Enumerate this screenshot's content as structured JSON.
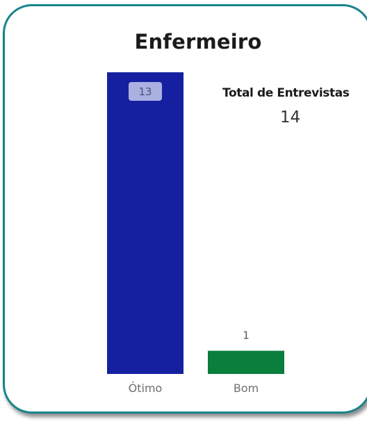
{
  "card": {
    "border_color": "#17848a"
  },
  "kpi": {
    "label": "Total de Entrevistas",
    "value": "14"
  },
  "chart_data": {
    "type": "bar",
    "title": "Enfermeiro",
    "categories": [
      "Ótimo",
      "Bom"
    ],
    "values": [
      13,
      1
    ],
    "colors": [
      "#1520a0",
      "#0a7e3c"
    ],
    "data_labels": [
      "13",
      "1"
    ],
    "ylim": [
      0,
      13
    ],
    "grid": false,
    "xlabel": "",
    "ylabel": ""
  }
}
